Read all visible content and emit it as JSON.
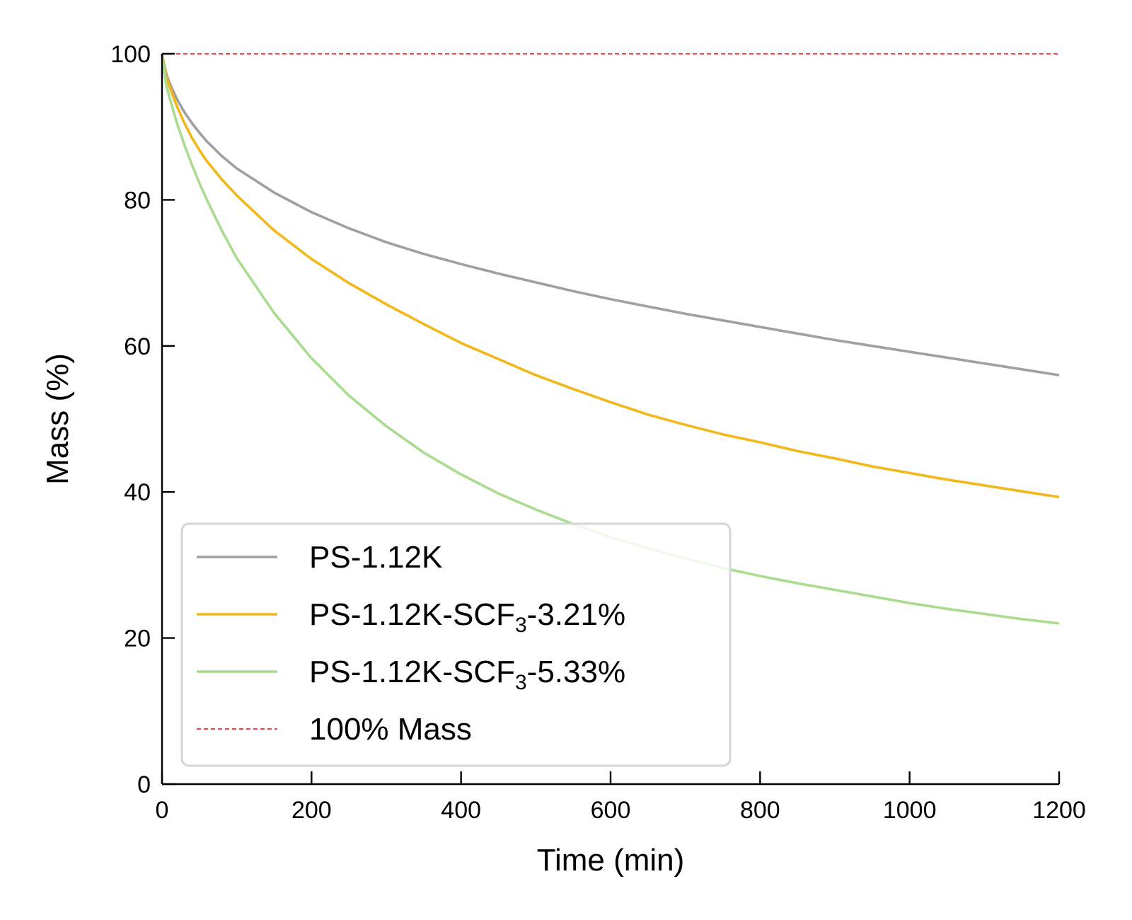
{
  "chart_data": {
    "type": "line",
    "xlabel": "Time (min)",
    "ylabel": "Mass (%)",
    "xlim": [
      0,
      1200
    ],
    "ylim": [
      0,
      100
    ],
    "xticks": [
      0,
      200,
      400,
      600,
      800,
      1000,
      1200
    ],
    "yticks": [
      0,
      20,
      40,
      60,
      80,
      100
    ],
    "grid": false,
    "legend_position": "lower-left",
    "series": [
      {
        "name": "PS-1.12K",
        "name_parts": [
          "PS-1.12K",
          "",
          ""
        ],
        "color": "#a0a0a0",
        "dash": "solid",
        "x": [
          0,
          5,
          10,
          20,
          30,
          40,
          50,
          60,
          80,
          100,
          150,
          200,
          250,
          300,
          350,
          400,
          450,
          500,
          550,
          600,
          650,
          700,
          750,
          800,
          850,
          900,
          950,
          1000,
          1050,
          1100,
          1150,
          1200
        ],
        "y": [
          100,
          97.5,
          96,
          93.8,
          92.0,
          90.5,
          89.2,
          88.0,
          86.0,
          84.3,
          81.0,
          78.3,
          76.1,
          74.2,
          72.6,
          71.2,
          69.9,
          68.7,
          67.5,
          66.4,
          65.4,
          64.4,
          63.5,
          62.6,
          61.7,
          60.8,
          60.0,
          59.2,
          58.4,
          57.6,
          56.8,
          56.0
        ]
      },
      {
        "name": "PS-1.12K-SCF3-3.21%",
        "name_parts": [
          "PS-1.12K-SCF",
          "3",
          "-3.21%"
        ],
        "color": "#f2b81a",
        "dash": "solid",
        "x": [
          0,
          5,
          10,
          20,
          30,
          40,
          50,
          60,
          80,
          100,
          150,
          200,
          250,
          300,
          350,
          400,
          450,
          500,
          550,
          600,
          650,
          700,
          750,
          800,
          850,
          900,
          950,
          1000,
          1050,
          1100,
          1150,
          1200
        ],
        "y": [
          100,
          97,
          95.5,
          92.8,
          90.5,
          88.5,
          86.8,
          85.3,
          82.8,
          80.6,
          75.8,
          71.9,
          68.6,
          65.7,
          63.0,
          60.4,
          58.2,
          56.0,
          54.1,
          52.3,
          50.6,
          49.2,
          47.9,
          46.8,
          45.6,
          44.6,
          43.5,
          42.6,
          41.7,
          40.9,
          40.1,
          39.3
        ]
      },
      {
        "name": "PS-1.12K-SCF3-5.33%",
        "name_parts": [
          "PS-1.12K-SCF",
          "3",
          "-5.33%"
        ],
        "color": "#a9dc8e",
        "dash": "solid",
        "x": [
          0,
          5,
          10,
          20,
          30,
          40,
          50,
          60,
          80,
          100,
          150,
          200,
          250,
          300,
          350,
          400,
          450,
          500,
          550,
          600,
          650,
          700,
          750,
          800,
          850,
          900,
          950,
          1000,
          1050,
          1100,
          1150,
          1200
        ],
        "y": [
          100,
          96,
          94,
          90.5,
          87.5,
          84.8,
          82.3,
          80.0,
          75.8,
          72.0,
          64.5,
          58.3,
          53.2,
          49.0,
          45.4,
          42.4,
          39.8,
          37.6,
          35.6,
          33.8,
          32.3,
          30.9,
          29.6,
          28.5,
          27.5,
          26.6,
          25.7,
          24.8,
          24.0,
          23.3,
          22.6,
          22.0
        ]
      },
      {
        "name": "100% Mass",
        "name_parts": [
          "100% Mass",
          "",
          ""
        ],
        "color": "#ff0000",
        "dash": "dashed",
        "x": [
          0,
          1200
        ],
        "y": [
          100,
          100
        ]
      }
    ]
  }
}
